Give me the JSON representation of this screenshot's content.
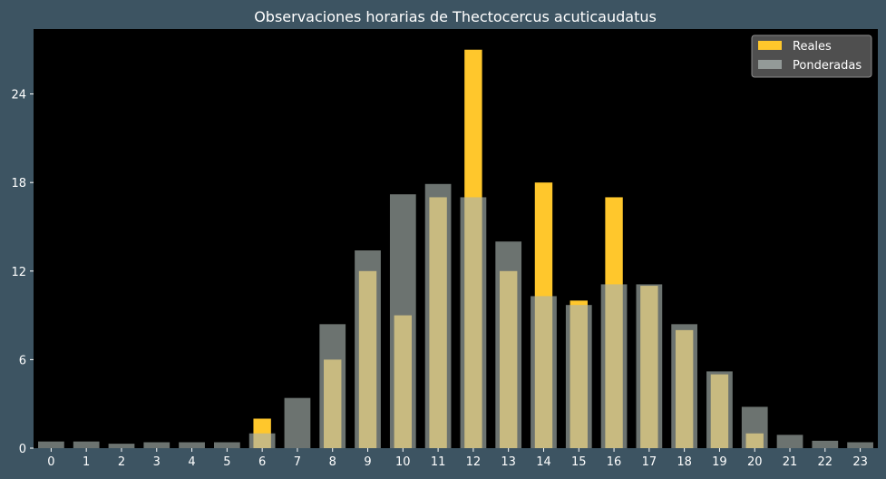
{
  "chart_data": {
    "type": "bar",
    "title": "Observaciones horarias de Thectocercus acuticaudatus",
    "xlabel": "",
    "ylabel": "",
    "categories": [
      "0",
      "1",
      "2",
      "3",
      "4",
      "5",
      "6",
      "7",
      "8",
      "9",
      "10",
      "11",
      "12",
      "13",
      "14",
      "15",
      "16",
      "17",
      "18",
      "19",
      "20",
      "21",
      "22",
      "23"
    ],
    "series": [
      {
        "name": "Reales",
        "color": "#ffc72c",
        "values": [
          0,
          0,
          0,
          0,
          0,
          0,
          2,
          0,
          6,
          12,
          9,
          17,
          27,
          12,
          18,
          10,
          17,
          11,
          8,
          5,
          1,
          0,
          0,
          0
        ]
      },
      {
        "name": "Ponderadas",
        "color": "#a9b3b0",
        "values": [
          0.45,
          0.45,
          0.3,
          0.4,
          0.4,
          0.4,
          1.0,
          3.4,
          8.4,
          13.4,
          17.2,
          17.9,
          17.0,
          14.0,
          10.3,
          9.7,
          11.1,
          11.1,
          8.4,
          5.2,
          2.8,
          0.9,
          0.5,
          0.4
        ]
      }
    ],
    "ylim": [
      0,
      28.4
    ],
    "yticks": [
      "0",
      "6",
      "12",
      "18",
      "24"
    ],
    "legend_position": "top-right",
    "grid": false,
    "background": "#000000",
    "figure_background": "#3d5462"
  }
}
